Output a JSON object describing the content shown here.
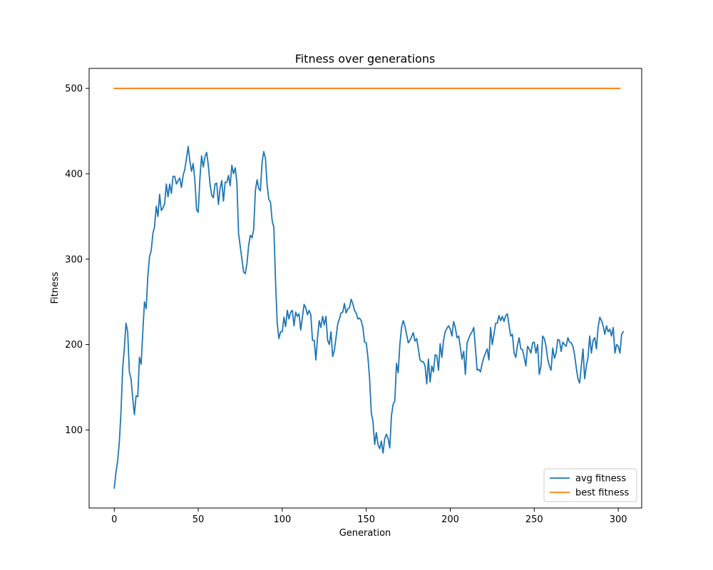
{
  "chart_data": {
    "type": "line",
    "title": "Fitness over generations",
    "xlabel": "Generation",
    "ylabel": "Fitness",
    "xlim": [
      -14.95,
      313.95
    ],
    "ylim": [
      8.6,
      523.4
    ],
    "xticks": [
      0,
      50,
      100,
      150,
      200,
      250,
      300
    ],
    "yticks": [
      100,
      200,
      300,
      400,
      500
    ],
    "grid": false,
    "legend_position": "lower-right",
    "series": [
      {
        "name": "avg fitness",
        "color": "#1f77b4",
        "x_start": 0,
        "x_step": 1,
        "values": [
          32,
          50,
          63,
          85,
          120,
          172,
          195,
          225,
          215,
          168,
          160,
          137,
          118,
          140,
          139,
          185,
          177,
          215,
          250,
          242,
          280,
          303,
          310,
          330,
          338,
          362,
          350,
          376,
          357,
          360,
          365,
          388,
          373,
          388,
          377,
          397,
          397,
          388,
          392,
          395,
          384,
          398,
          405,
          418,
          432,
          415,
          403,
          412,
          392,
          358,
          355,
          395,
          421,
          408,
          420,
          425,
          410,
          388,
          375,
          372,
          388,
          389,
          364,
          383,
          392,
          368,
          390,
          390,
          398,
          386,
          410,
          400,
          407,
          390,
          330,
          315,
          300,
          285,
          283,
          295,
          316,
          328,
          325,
          335,
          380,
          393,
          383,
          380,
          414,
          426,
          418,
          387,
          370,
          367,
          345,
          337,
          275,
          225,
          207,
          215,
          215,
          232,
          221,
          240,
          230,
          238,
          240,
          222,
          238,
          233,
          236,
          217,
          232,
          247,
          243,
          235,
          240,
          235,
          205,
          205,
          182,
          208,
          228,
          220,
          233,
          223,
          233,
          205,
          200,
          215,
          186,
          193,
          208,
          224,
          230,
          237,
          238,
          248,
          237,
          242,
          243,
          253,
          248,
          240,
          237,
          230,
          231,
          228,
          220,
          203,
          202,
          185,
          160,
          120,
          110,
          83,
          97,
          83,
          78,
          87,
          73,
          90,
          95,
          90,
          79,
          117,
          130,
          134,
          178,
          167,
          200,
          220,
          228,
          222,
          212,
          202,
          205,
          209,
          214,
          204,
          207,
          195,
          182,
          180,
          180,
          175,
          154,
          183,
          156,
          175,
          168,
          188,
          187,
          170,
          201,
          185,
          205,
          215,
          219,
          222,
          218,
          210,
          227,
          220,
          208,
          210,
          197,
          183,
          192,
          165,
          202,
          207,
          212,
          215,
          220,
          195,
          170,
          171,
          168,
          178,
          185,
          190,
          195,
          182,
          220,
          200,
          212,
          225,
          225,
          234,
          228,
          233,
          227,
          234,
          236,
          222,
          210,
          212,
          190,
          185,
          199,
          208,
          195,
          194,
          185,
          175,
          198,
          195,
          190,
          202,
          203,
          190,
          200,
          165,
          175,
          210,
          207,
          198,
          183,
          175,
          170,
          196,
          184,
          190,
          206,
          205,
          192,
          203,
          200,
          198,
          208,
          203,
          202,
          198,
          188,
          173,
          160,
          155,
          175,
          195,
          160,
          175,
          185,
          210,
          190,
          205,
          208,
          195,
          220,
          232,
          228,
          222,
          212,
          222,
          215,
          218,
          210,
          220,
          190,
          200,
          198,
          190,
          212,
          215
        ]
      },
      {
        "name": "best fitness",
        "color": "#ff7f0e",
        "x_start": 0,
        "x_step": 1,
        "values": [
          500,
          500,
          500,
          500,
          500,
          500,
          500,
          500,
          500,
          500,
          500,
          500,
          500,
          500,
          500,
          500,
          500,
          500,
          500,
          500,
          500,
          500,
          500,
          500,
          500,
          500,
          500,
          500,
          500,
          500,
          500,
          500,
          500,
          500,
          500,
          500,
          500,
          500,
          500,
          500,
          500,
          500,
          500,
          500,
          500,
          500,
          500,
          500,
          500,
          500,
          500,
          500,
          500,
          500,
          500,
          500,
          500,
          500,
          500,
          500,
          500,
          500,
          500,
          500,
          500,
          500,
          500,
          500,
          500,
          500,
          500,
          500,
          500,
          500,
          500,
          500,
          500,
          500,
          500,
          500,
          500,
          500,
          500,
          500,
          500,
          500,
          500,
          500,
          500,
          500,
          500,
          500,
          500,
          500,
          500,
          500,
          500,
          500,
          500,
          500,
          500,
          500,
          500,
          500,
          500,
          500,
          500,
          500,
          500,
          500,
          500,
          500,
          500,
          500,
          500,
          500,
          500,
          500,
          500,
          500,
          500,
          500,
          500,
          500,
          500,
          500,
          500,
          500,
          500,
          500,
          500,
          500,
          500,
          500,
          500,
          500,
          500,
          500,
          500,
          500,
          500,
          500,
          500,
          500,
          500,
          500,
          500,
          500,
          500,
          500,
          500,
          500,
          500,
          500,
          500,
          500,
          500,
          500,
          500,
          500,
          500,
          500,
          500,
          500,
          500,
          500,
          500,
          500,
          500,
          500,
          500,
          500,
          500,
          500,
          500,
          500,
          500,
          500,
          500,
          500,
          500,
          500,
          500,
          500,
          500,
          500,
          500,
          500,
          500,
          500,
          500,
          500,
          500,
          500,
          500,
          500,
          500,
          500,
          500,
          500,
          500,
          500,
          500,
          500,
          500,
          500,
          500,
          500,
          500,
          500,
          500,
          500,
          500,
          500,
          500,
          500,
          500,
          500,
          500,
          500,
          500,
          500,
          500,
          500,
          500,
          500,
          500,
          500,
          500,
          500,
          500,
          500,
          500,
          500,
          500,
          500,
          500,
          500,
          500,
          500,
          500,
          500,
          500,
          500,
          500,
          500,
          500,
          500,
          500,
          500,
          500,
          500,
          500,
          500,
          500,
          500,
          500,
          500,
          500,
          500,
          500,
          500,
          500,
          500,
          500,
          500,
          500,
          500,
          500,
          500,
          500,
          500,
          500,
          500,
          500,
          500,
          500,
          500,
          500,
          500,
          500,
          500,
          500,
          500,
          500,
          500,
          500,
          500,
          500,
          500,
          500,
          500,
          500,
          500,
          500,
          500,
          500,
          500,
          500,
          500,
          500,
          500
        ]
      }
    ]
  }
}
